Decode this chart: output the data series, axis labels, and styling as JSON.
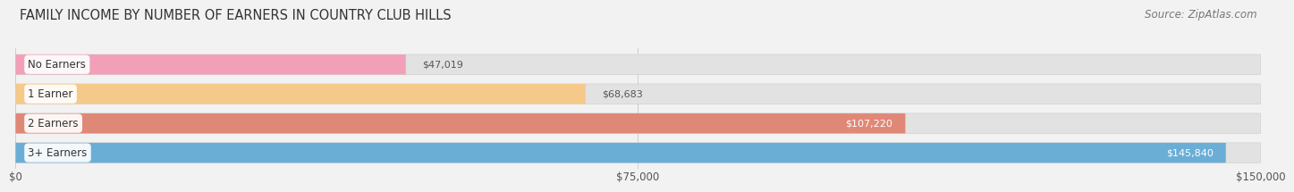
{
  "title": "FAMILY INCOME BY NUMBER OF EARNERS IN COUNTRY CLUB HILLS",
  "source": "Source: ZipAtlas.com",
  "categories": [
    "No Earners",
    "1 Earner",
    "2 Earners",
    "3+ Earners"
  ],
  "values": [
    47019,
    68683,
    107220,
    145840
  ],
  "bar_colors": [
    "#f2a0b8",
    "#f5c98a",
    "#e08878",
    "#6aaed6"
  ],
  "value_label_inside": [
    false,
    false,
    true,
    true
  ],
  "value_labels": [
    "$47,019",
    "$68,683",
    "$107,220",
    "$145,840"
  ],
  "xlim": [
    0,
    150000
  ],
  "xticks": [
    0,
    75000,
    150000
  ],
  "xticklabels": [
    "$0",
    "$75,000",
    "$150,000"
  ],
  "background_color": "#f2f2f2",
  "bar_bg_color": "#e2e2e2",
  "title_fontsize": 10.5,
  "source_fontsize": 8.5,
  "label_fontsize": 8.5,
  "value_fontsize": 8,
  "tick_fontsize": 8.5
}
